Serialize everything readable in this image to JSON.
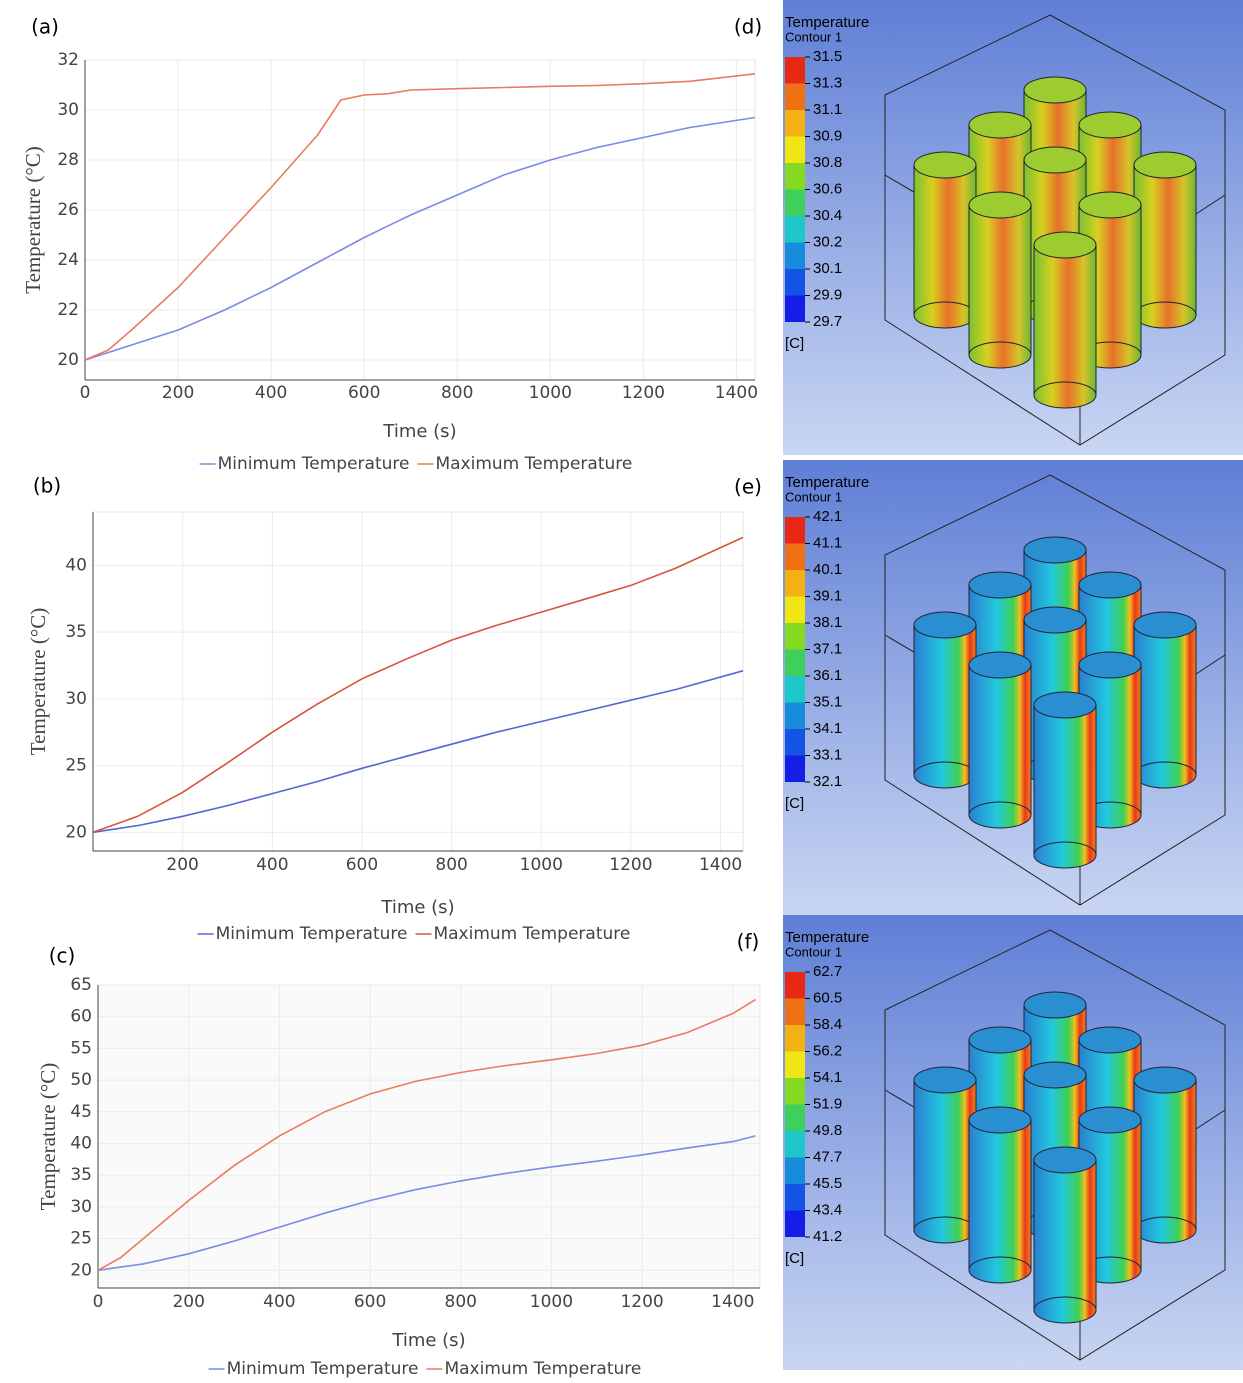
{
  "chart_data": [
    {
      "type": "line",
      "panel_label": "(a)",
      "x_label": "Time (s)",
      "y_label": "Temperature (°C)",
      "x": [
        0,
        50,
        100,
        200,
        300,
        400,
        500,
        550,
        600,
        650,
        700,
        800,
        900,
        1000,
        1100,
        1200,
        1300,
        1440
      ],
      "xlim": [
        0,
        1440
      ],
      "ylim": [
        19.2,
        32
      ],
      "xticks": [
        0,
        200,
        400,
        600,
        800,
        1000,
        1200,
        1400
      ],
      "yticks": [
        20,
        22,
        24,
        26,
        28,
        30,
        32
      ],
      "grid": true,
      "series": [
        {
          "name": "Minimum Temperature",
          "color": "#7b8be6",
          "values": [
            20,
            20.3,
            20.6,
            21.2,
            22.0,
            22.9,
            23.9,
            24.4,
            24.9,
            25.35,
            25.8,
            26.6,
            27.4,
            28.0,
            28.5,
            28.9,
            29.3,
            29.7
          ]
        },
        {
          "name": "Maximum Temperature",
          "color": "#ea7a60",
          "values": [
            20,
            20.4,
            21.2,
            22.9,
            24.9,
            26.9,
            29.0,
            30.4,
            30.6,
            30.65,
            30.8,
            30.85,
            30.9,
            30.95,
            30.98,
            31.05,
            31.15,
            31.45
          ]
        }
      ]
    },
    {
      "type": "line",
      "panel_label": "(b)",
      "x_label": "Time (s)",
      "y_label": "Temperature (°C)",
      "x": [
        0,
        100,
        200,
        300,
        400,
        500,
        600,
        700,
        800,
        900,
        1000,
        1100,
        1200,
        1300,
        1450
      ],
      "xlim": [
        0,
        1450
      ],
      "ylim": [
        18.6,
        44
      ],
      "xticks": [
        200,
        400,
        600,
        800,
        1000,
        1200,
        1400
      ],
      "yticks": [
        20,
        25,
        30,
        35,
        40
      ],
      "grid": true,
      "series": [
        {
          "name": "Minimum Temperature",
          "color": "#5566d6",
          "values": [
            20,
            20.5,
            21.2,
            22,
            22.9,
            23.8,
            24.8,
            25.7,
            26.6,
            27.5,
            28.3,
            29.1,
            29.9,
            30.7,
            32.1
          ]
        },
        {
          "name": "Maximum Temperature",
          "color": "#d9533c",
          "values": [
            20,
            21.2,
            23,
            25.2,
            27.5,
            29.6,
            31.5,
            33,
            34.4,
            35.5,
            36.5,
            37.5,
            38.5,
            39.8,
            42.1
          ]
        }
      ]
    },
    {
      "type": "line",
      "panel_label": "(c)",
      "x_label": "Time (s)",
      "y_label": "Temperature (°C)",
      "x": [
        0,
        50,
        100,
        200,
        300,
        400,
        500,
        600,
        700,
        800,
        900,
        1000,
        1100,
        1200,
        1300,
        1400,
        1450
      ],
      "xlim": [
        0,
        1460
      ],
      "ylim": [
        17.2,
        65
      ],
      "xticks": [
        0,
        200,
        400,
        600,
        800,
        1000,
        1200,
        1400
      ],
      "yticks": [
        20,
        25,
        30,
        35,
        40,
        45,
        50,
        55,
        60,
        65
      ],
      "grid": true,
      "series": [
        {
          "name": "Minimum Temperature",
          "color": "#7b8be6",
          "values": [
            20,
            20.5,
            21,
            22.6,
            24.6,
            26.8,
            29,
            31,
            32.7,
            34.1,
            35.3,
            36.3,
            37.2,
            38.2,
            39.3,
            40.3,
            41.2
          ]
        },
        {
          "name": "Maximum Temperature",
          "color": "#ea7a60",
          "values": [
            20,
            22,
            25,
            31,
            36.5,
            41.2,
            45,
            47.8,
            49.8,
            51.2,
            52.3,
            53.2,
            54.2,
            55.5,
            57.5,
            60.5,
            62.7
          ]
        }
      ]
    }
  ],
  "contours": [
    {
      "panel_label": "(d)",
      "title": "Temperature",
      "subtitle": "Contour 1",
      "unit": "[C]",
      "levels": [
        31.5,
        31.3,
        31.1,
        30.9,
        30.8,
        30.6,
        30.4,
        30.2,
        30.1,
        29.9,
        29.7
      ]
    },
    {
      "panel_label": "(e)",
      "title": "Temperature",
      "subtitle": "Contour 1",
      "unit": "[C]",
      "levels": [
        42.1,
        41.1,
        40.1,
        39.1,
        38.1,
        37.1,
        36.1,
        35.1,
        34.1,
        33.1,
        32.1
      ]
    },
    {
      "panel_label": "(f)",
      "title": "Temperature",
      "subtitle": "Contour 1",
      "unit": "[C]",
      "levels": [
        62.7,
        60.5,
        58.4,
        56.2,
        54.1,
        51.9,
        49.8,
        47.7,
        45.5,
        43.4,
        41.2
      ]
    }
  ]
}
